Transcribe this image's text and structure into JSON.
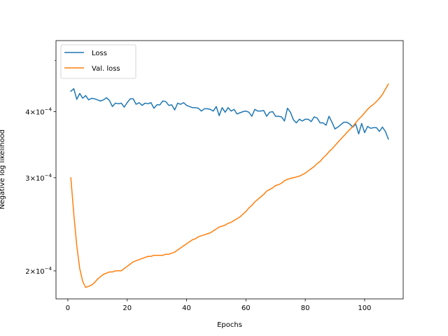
{
  "chart_data": {
    "type": "line",
    "title": "",
    "xlabel": "Epochs",
    "ylabel": "Negative log likelihood",
    "yscale": "log",
    "xlim": [
      -4,
      113
    ],
    "ylim": [
      0.000177,
      0.000545
    ],
    "xticks": [
      0,
      20,
      40,
      60,
      80,
      100
    ],
    "xtick_labels": [
      "0",
      "20",
      "40",
      "60",
      "80",
      "100"
    ],
    "yticks_major": [
      0.0002,
      0.0003,
      0.0004
    ],
    "ytick_labels": [
      {
        "base": "2×10",
        "exp": "−4"
      },
      {
        "base": "3×10",
        "exp": "−4"
      },
      {
        "base": "4×10",
        "exp": "−4"
      }
    ],
    "yticks_minor": [
      0.0005
    ],
    "grid": false,
    "legend_position": "upper left",
    "series": [
      {
        "name": "Loss",
        "color": "#1f77b4",
        "x": [
          1,
          2,
          3,
          4,
          5,
          6,
          7,
          8,
          9,
          10,
          11,
          12,
          13,
          14,
          15,
          16,
          17,
          18,
          19,
          20,
          21,
          22,
          23,
          24,
          25,
          26,
          27,
          28,
          29,
          30,
          31,
          32,
          33,
          34,
          35,
          36,
          37,
          38,
          39,
          40,
          41,
          42,
          43,
          44,
          45,
          46,
          47,
          48,
          49,
          50,
          51,
          52,
          53,
          54,
          55,
          56,
          57,
          58,
          59,
          60,
          61,
          62,
          63,
          64,
          65,
          66,
          67,
          68,
          69,
          70,
          71,
          72,
          73,
          74,
          75,
          76,
          77,
          78,
          79,
          80,
          81,
          82,
          83,
          84,
          85,
          86,
          87,
          88,
          89,
          90,
          91,
          92,
          93,
          94,
          95,
          96,
          97,
          98,
          99,
          100,
          101,
          102,
          103,
          104,
          105,
          106,
          107,
          108
        ],
        "values": [
          0.000437,
          0.000442,
          0.000422,
          0.000433,
          0.000424,
          0.000429,
          0.000421,
          0.000424,
          0.000423,
          0.000421,
          0.000419,
          0.000421,
          0.000425,
          0.00042,
          0.000409,
          0.000415,
          0.000414,
          0.000415,
          0.000408,
          0.000416,
          0.000423,
          0.000423,
          0.000413,
          0.000416,
          0.000411,
          0.000415,
          0.000414,
          0.000416,
          0.000406,
          0.000412,
          0.000412,
          0.000419,
          0.000418,
          0.000411,
          0.000412,
          0.000403,
          0.000415,
          0.000413,
          0.000416,
          0.000411,
          0.000409,
          0.000407,
          0.000407,
          0.000406,
          0.000401,
          0.000405,
          0.000405,
          0.000404,
          0.000401,
          0.000409,
          0.000393,
          0.000407,
          0.000399,
          0.000407,
          0.000401,
          0.000404,
          0.000396,
          0.000398,
          0.0004,
          0.000401,
          0.000399,
          0.000392,
          0.000404,
          0.000401,
          0.000401,
          0.000402,
          0.000392,
          0.000399,
          0.0004,
          0.000392,
          0.000392,
          0.000391,
          0.000384,
          0.000406,
          0.000399,
          0.000386,
          0.000381,
          0.000387,
          0.000384,
          0.000387,
          0.000387,
          0.000383,
          0.000391,
          0.000389,
          0.000381,
          0.000381,
          0.000377,
          0.000392,
          0.000382,
          0.000371,
          0.000374,
          0.000378,
          0.000382,
          0.000382,
          0.000379,
          0.000374,
          0.000379,
          0.000363,
          0.00038,
          0.000365,
          0.000375,
          0.000372,
          0.000373,
          0.000373,
          0.000367,
          0.000374,
          0.000367,
          0.000355
        ]
      },
      {
        "name": "Val. loss",
        "color": "#ff7f0e",
        "x": [
          1,
          2,
          3,
          4,
          5,
          6,
          7,
          8,
          9,
          10,
          11,
          12,
          13,
          14,
          15,
          16,
          17,
          18,
          19,
          20,
          21,
          22,
          23,
          24,
          25,
          26,
          27,
          28,
          29,
          30,
          31,
          32,
          33,
          34,
          35,
          36,
          37,
          38,
          39,
          40,
          41,
          42,
          43,
          44,
          45,
          46,
          47,
          48,
          49,
          50,
          51,
          52,
          53,
          54,
          55,
          56,
          57,
          58,
          59,
          60,
          61,
          62,
          63,
          64,
          65,
          66,
          67,
          68,
          69,
          70,
          71,
          72,
          73,
          74,
          75,
          76,
          77,
          78,
          79,
          80,
          81,
          82,
          83,
          84,
          85,
          86,
          87,
          88,
          89,
          90,
          91,
          92,
          93,
          94,
          95,
          96,
          97,
          98,
          99,
          100,
          101,
          102,
          103,
          104,
          105,
          106,
          107,
          108
        ],
        "values": [
          0.0003,
          0.000256,
          0.000223,
          0.000202,
          0.000191,
          0.000186,
          0.000187,
          0.000188,
          0.00019,
          0.000193,
          0.000195,
          0.000197,
          0.000198,
          0.000199,
          0.000199,
          0.0002,
          0.0002,
          0.0002,
          0.000202,
          0.000204,
          0.000206,
          0.000208,
          0.000209,
          0.00021,
          0.000211,
          0.000212,
          0.000213,
          0.000213,
          0.000214,
          0.000214,
          0.000214,
          0.000214,
          0.000215,
          0.000215,
          0.000216,
          0.000217,
          0.000219,
          0.000221,
          0.000223,
          0.000225,
          0.000227,
          0.000229,
          0.00023,
          0.000232,
          0.000233,
          0.000234,
          0.000235,
          0.000236,
          0.000238,
          0.00024,
          0.000242,
          0.000243,
          0.000244,
          0.000246,
          0.000247,
          0.000249,
          0.000251,
          0.000253,
          0.000256,
          0.000259,
          0.000263,
          0.000266,
          0.00027,
          0.000273,
          0.000276,
          0.000279,
          0.000283,
          0.000285,
          0.000287,
          0.00029,
          0.000291,
          0.000293,
          0.000296,
          0.000298,
          0.000299,
          0.0003,
          0.000301,
          0.000302,
          0.000304,
          0.000306,
          0.000309,
          0.000312,
          0.000315,
          0.000319,
          0.000322,
          0.000327,
          0.000331,
          0.000336,
          0.00034,
          0.000345,
          0.00035,
          0.000355,
          0.00036,
          0.000365,
          0.00037,
          0.000375,
          0.000381,
          0.000387,
          0.000392,
          0.000398,
          0.000404,
          0.000409,
          0.000413,
          0.000418,
          0.000424,
          0.000431,
          0.000441,
          0.000451
        ]
      }
    ]
  }
}
